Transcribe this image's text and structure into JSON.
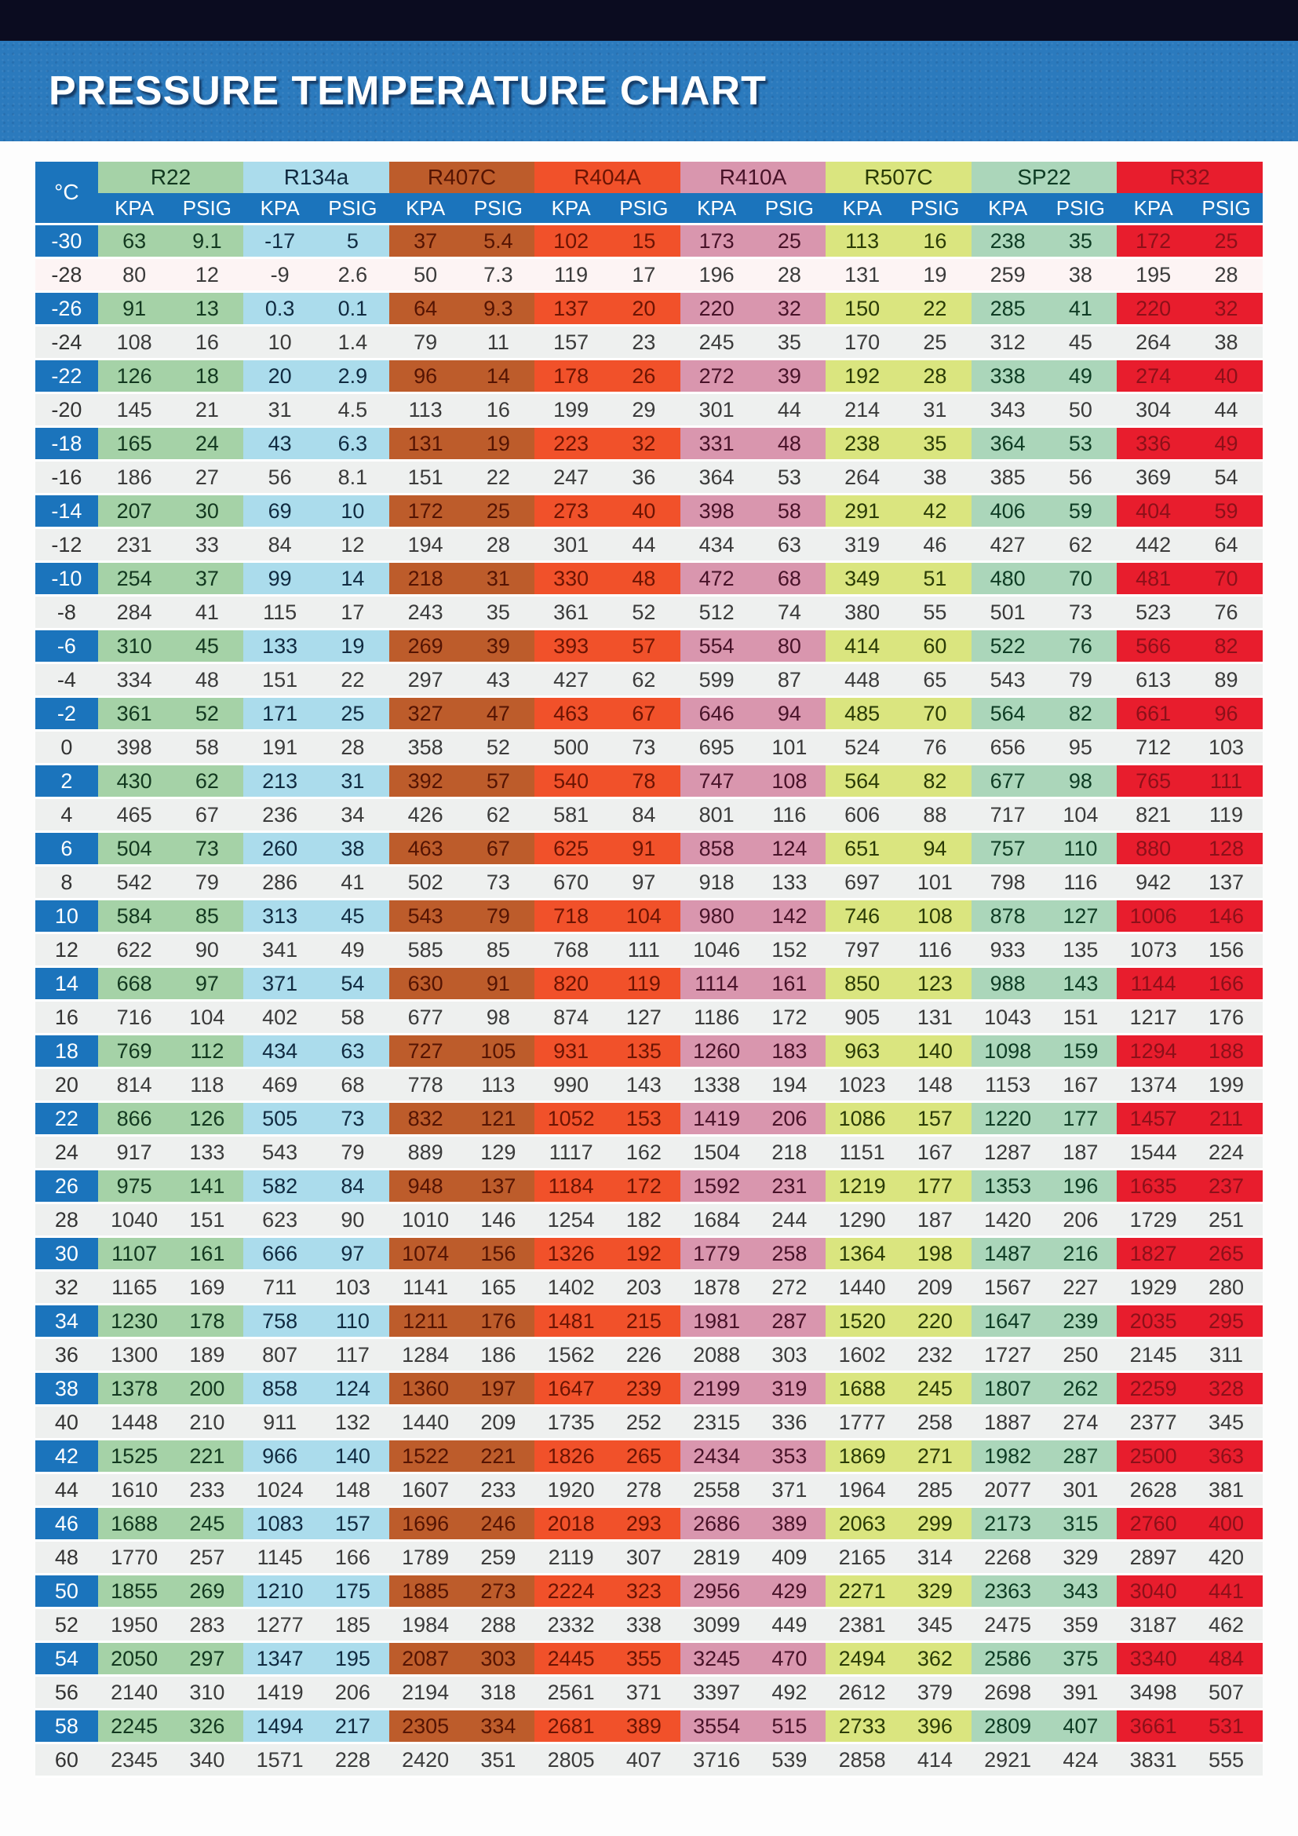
{
  "header": {
    "title": "PRESSURE TEMPERATURE CHART"
  },
  "table": {
    "temp_header": "°C",
    "unit_labels": [
      "KPA",
      "PSIG"
    ],
    "groups": [
      {
        "name": "R22",
        "bg": "#a5d2a7",
        "text": "#12381f"
      },
      {
        "name": "R134a",
        "bg": "#abdcec",
        "text": "#102a40"
      },
      {
        "name": "R407C",
        "bg": "#bd5c2b",
        "text": "#541403"
      },
      {
        "name": "R404A",
        "bg": "#f1512a",
        "text": "#6b1403"
      },
      {
        "name": "R410A",
        "bg": "#d996ae",
        "text": "#471228"
      },
      {
        "name": "R507C",
        "bg": "#dae57f",
        "text": "#2a3b06"
      },
      {
        "name": "SP22",
        "bg": "#abd6ba",
        "text": "#0e3c24"
      },
      {
        "name": "R32",
        "bg": "#e81d2d",
        "text": "#8c1019"
      }
    ],
    "colors": {
      "header_blue": "#1b74bc",
      "light_row": "#eef0ef",
      "light_row_alt": "#fdf4f4",
      "light_row_text": "#3b3b3b",
      "banner_blue": "#2b7abd",
      "topbar_navy": "#0b0c20"
    }
  },
  "chart_data": {
    "type": "table",
    "title": "PRESSURE TEMPERATURE CHART",
    "xlabel": "°C",
    "x": [
      -30,
      -28,
      -26,
      -24,
      -22,
      -20,
      -18,
      -16,
      -14,
      -12,
      -10,
      -8,
      -6,
      -4,
      -2,
      0,
      2,
      4,
      6,
      8,
      10,
      12,
      14,
      16,
      18,
      20,
      22,
      24,
      26,
      28,
      30,
      32,
      34,
      36,
      38,
      40,
      42,
      44,
      46,
      48,
      50,
      52,
      54,
      56,
      58,
      60
    ],
    "series": [
      {
        "name": "R22 KPA",
        "values": [
          63,
          80,
          91,
          108,
          126,
          145,
          165,
          186,
          207,
          231,
          254,
          284,
          310,
          334,
          361,
          398,
          430,
          465,
          504,
          542,
          584,
          622,
          668,
          716,
          769,
          814,
          866,
          917,
          975,
          1040,
          1107,
          1165,
          1230,
          1300,
          1378,
          1448,
          1525,
          1610,
          1688,
          1770,
          1855,
          1950,
          2050,
          2140,
          2245,
          2345
        ]
      },
      {
        "name": "R22 PSIG",
        "values": [
          9.1,
          12,
          13,
          16,
          18,
          21,
          24,
          27,
          30,
          33,
          37,
          41,
          45,
          48,
          52,
          58,
          62,
          67,
          73,
          79,
          85,
          90,
          97,
          104,
          112,
          118,
          126,
          133,
          141,
          151,
          161,
          169,
          178,
          189,
          200,
          210,
          221,
          233,
          245,
          257,
          269,
          283,
          297,
          310,
          326,
          340
        ]
      },
      {
        "name": "R134a KPA",
        "values": [
          -17,
          -9,
          0.3,
          10,
          20,
          31,
          43,
          56,
          69,
          84,
          99,
          115,
          133,
          151,
          171,
          191,
          213,
          236,
          260,
          286,
          313,
          341,
          371,
          402,
          434,
          469,
          505,
          543,
          582,
          623,
          666,
          711,
          758,
          807,
          858,
          911,
          966,
          1024,
          1083,
          1145,
          1210,
          1277,
          1347,
          1419,
          1494,
          1571
        ]
      },
      {
        "name": "R134a PSIG",
        "values": [
          5,
          2.6,
          0.1,
          1.4,
          2.9,
          4.5,
          6.3,
          8.1,
          10,
          12,
          14,
          17,
          19,
          22,
          25,
          28,
          31,
          34,
          38,
          41,
          45,
          49,
          54,
          58,
          63,
          68,
          73,
          79,
          84,
          90,
          97,
          103,
          110,
          117,
          124,
          132,
          140,
          148,
          157,
          166,
          175,
          185,
          195,
          206,
          217,
          228
        ]
      },
      {
        "name": "R407C KPA",
        "values": [
          37,
          50,
          64,
          79,
          96,
          113,
          131,
          151,
          172,
          194,
          218,
          243,
          269,
          297,
          327,
          358,
          392,
          426,
          463,
          502,
          543,
          585,
          630,
          677,
          727,
          778,
          832,
          889,
          948,
          1010,
          1074,
          1141,
          1211,
          1284,
          1360,
          1440,
          1522,
          1607,
          1696,
          1789,
          1885,
          1984,
          2087,
          2194,
          2305,
          2420
        ]
      },
      {
        "name": "R407C PSIG",
        "values": [
          5.4,
          7.3,
          9.3,
          11,
          14,
          16,
          19,
          22,
          25,
          28,
          31,
          35,
          39,
          43,
          47,
          52,
          57,
          62,
          67,
          73,
          79,
          85,
          91,
          98,
          105,
          113,
          121,
          129,
          137,
          146,
          156,
          165,
          176,
          186,
          197,
          209,
          221,
          233,
          246,
          259,
          273,
          288,
          303,
          318,
          334,
          351
        ]
      },
      {
        "name": "R404A KPA",
        "values": [
          102,
          119,
          137,
          157,
          178,
          199,
          223,
          247,
          273,
          301,
          330,
          361,
          393,
          427,
          463,
          500,
          540,
          581,
          625,
          670,
          718,
          768,
          820,
          874,
          931,
          990,
          1052,
          1117,
          1184,
          1254,
          1326,
          1402,
          1481,
          1562,
          1647,
          1735,
          1826,
          1920,
          2018,
          2119,
          2224,
          2332,
          2445,
          2561,
          2681,
          2805
        ]
      },
      {
        "name": "R404A PSIG",
        "values": [
          15,
          17,
          20,
          23,
          26,
          29,
          32,
          36,
          40,
          44,
          48,
          52,
          57,
          62,
          67,
          73,
          78,
          84,
          91,
          97,
          104,
          111,
          119,
          127,
          135,
          143,
          153,
          162,
          172,
          182,
          192,
          203,
          215,
          226,
          239,
          252,
          265,
          278,
          293,
          307,
          323,
          338,
          355,
          371,
          389,
          407
        ]
      },
      {
        "name": "R410A KPA",
        "values": [
          173,
          196,
          220,
          245,
          272,
          301,
          331,
          364,
          398,
          434,
          472,
          512,
          554,
          599,
          646,
          695,
          747,
          801,
          858,
          918,
          980,
          1046,
          1114,
          1186,
          1260,
          1338,
          1419,
          1504,
          1592,
          1684,
          1779,
          1878,
          1981,
          2088,
          2199,
          2315,
          2434,
          2558,
          2686,
          2819,
          2956,
          3099,
          3245,
          3397,
          3554,
          3716
        ]
      },
      {
        "name": "R410A PSIG",
        "values": [
          25,
          28,
          32,
          35,
          39,
          44,
          48,
          53,
          58,
          63,
          68,
          74,
          80,
          87,
          94,
          101,
          108,
          116,
          124,
          133,
          142,
          152,
          161,
          172,
          183,
          194,
          206,
          218,
          231,
          244,
          258,
          272,
          287,
          303,
          319,
          336,
          353,
          371,
          389,
          409,
          429,
          449,
          470,
          492,
          515,
          539
        ]
      },
      {
        "name": "R507C KPA",
        "values": [
          113,
          131,
          150,
          170,
          192,
          214,
          238,
          264,
          291,
          319,
          349,
          380,
          414,
          448,
          485,
          524,
          564,
          606,
          651,
          697,
          746,
          797,
          850,
          905,
          963,
          1023,
          1086,
          1151,
          1219,
          1290,
          1364,
          1440,
          1520,
          1602,
          1688,
          1777,
          1869,
          1964,
          2063,
          2165,
          2271,
          2381,
          2494,
          2612,
          2733,
          2858
        ]
      },
      {
        "name": "R507C PSIG",
        "values": [
          16,
          19,
          22,
          25,
          28,
          31,
          35,
          38,
          42,
          46,
          51,
          55,
          60,
          65,
          70,
          76,
          82,
          88,
          94,
          101,
          108,
          116,
          123,
          131,
          140,
          148,
          157,
          167,
          177,
          187,
          198,
          209,
          220,
          232,
          245,
          258,
          271,
          285,
          299,
          314,
          329,
          345,
          362,
          379,
          396,
          414
        ]
      },
      {
        "name": "SP22 KPA",
        "values": [
          238,
          259,
          285,
          312,
          338,
          343,
          364,
          385,
          406,
          427,
          480,
          501,
          522,
          543,
          564,
          656,
          677,
          717,
          757,
          798,
          878,
          933,
          988,
          1043,
          1098,
          1153,
          1220,
          1287,
          1353,
          1420,
          1487,
          1567,
          1647,
          1727,
          1807,
          1887,
          1982,
          2077,
          2173,
          2268,
          2363,
          2475,
          2586,
          2698,
          2809,
          2921
        ]
      },
      {
        "name": "SP22 PSIG",
        "values": [
          35,
          38,
          41,
          45,
          49,
          50,
          53,
          56,
          59,
          62,
          70,
          73,
          76,
          79,
          82,
          95,
          98,
          104,
          110,
          116,
          127,
          135,
          143,
          151,
          159,
          167,
          177,
          187,
          196,
          206,
          216,
          227,
          239,
          250,
          262,
          274,
          287,
          301,
          315,
          329,
          343,
          359,
          375,
          391,
          407,
          424
        ]
      },
      {
        "name": "R32 KPA",
        "values": [
          172,
          195,
          220,
          264,
          274,
          304,
          336,
          369,
          404,
          442,
          481,
          523,
          566,
          613,
          661,
          712,
          765,
          821,
          880,
          942,
          1006,
          1073,
          1144,
          1217,
          1294,
          1374,
          1457,
          1544,
          1635,
          1729,
          1827,
          1929,
          2035,
          2145,
          2259,
          2377,
          2500,
          2628,
          2760,
          2897,
          3040,
          3187,
          3340,
          3498,
          3661,
          3831
        ]
      },
      {
        "name": "R32 PSIG",
        "values": [
          25,
          28,
          32,
          38,
          40,
          44,
          49,
          54,
          59,
          64,
          70,
          76,
          82,
          89,
          96,
          103,
          111,
          119,
          128,
          137,
          146,
          156,
          166,
          176,
          188,
          199,
          211,
          224,
          237,
          251,
          265,
          280,
          295,
          311,
          328,
          345,
          363,
          381,
          400,
          420,
          441,
          462,
          484,
          507,
          531,
          555
        ]
      }
    ]
  }
}
